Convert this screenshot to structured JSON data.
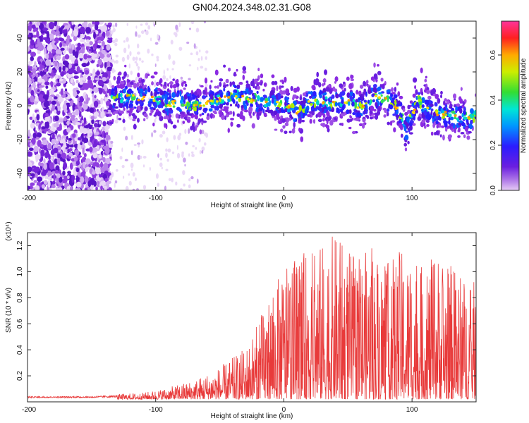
{
  "title": "GN04.2024.348.02.31.G08",
  "chart_data": [
    {
      "type": "heatmap",
      "xlabel": "Height of straight line (km)",
      "ylabel": "Frequency (Hz)",
      "xlim": [
        -200,
        150
      ],
      "ylim": [
        -50,
        50
      ],
      "xticks": [
        -200,
        -100,
        0,
        100
      ],
      "yticks": [
        -40,
        -20,
        0,
        20,
        40
      ],
      "colorbar": {
        "label": "Normalized spectral amplitude",
        "range": [
          0,
          0.75
        ],
        "ticks": [
          0.0,
          0.2,
          0.4,
          0.6
        ],
        "tick_labels": [
          "0.0",
          "0.2",
          "0.4",
          "0.6"
        ],
        "colors": [
          "#e6ccf5",
          "#8a2be2",
          "#3b1cff",
          "#0099ff",
          "#00e5d0",
          "#33dd33",
          "#ccee00",
          "#ffaa00",
          "#ff2020",
          "#ff3399"
        ]
      },
      "track": {
        "x": [
          -135,
          -120,
          -100,
          -90,
          -80,
          -70,
          -60,
          -50,
          -40,
          -30,
          -20,
          -10,
          0,
          10,
          20,
          30,
          40,
          50,
          60,
          70,
          80,
          90,
          95,
          100,
          105,
          110,
          120,
          130,
          140,
          150
        ],
        "y": [
          4,
          5,
          4,
          1,
          2,
          0,
          1,
          4,
          6,
          5,
          3,
          2,
          1,
          -4,
          2,
          3,
          1,
          2,
          -1,
          6,
          4,
          -2,
          -14,
          -6,
          4,
          -2,
          -4,
          -6,
          -7,
          -6
        ]
      }
    },
    {
      "type": "line",
      "xlabel": "Height of straight line (km)",
      "ylabel": "SNR (10 * v/v)",
      "y_multiplier_label": "(x10⁴)",
      "xlim": [
        -200,
        150
      ],
      "ylim": [
        0,
        1.3
      ],
      "xticks": [
        -200,
        -100,
        0,
        100
      ],
      "yticks": [
        0.2,
        0.4,
        0.6,
        0.8,
        1.0,
        1.2
      ],
      "ytick_labels": [
        "0.2",
        "0.4",
        "0.6",
        "0.8",
        "1.0",
        "1.2"
      ],
      "series": [
        {
          "color": "#e83a3a",
          "envelope_x": [
            -200,
            -150,
            -130,
            -110,
            -100,
            -90,
            -80,
            -70,
            -60,
            -50,
            -40,
            -30,
            -20,
            -10,
            0,
            10,
            20,
            30,
            40,
            50,
            60,
            70,
            80,
            90,
            100,
            110,
            120,
            130,
            140,
            150
          ],
          "envelope_y": [
            0.03,
            0.03,
            0.04,
            0.05,
            0.07,
            0.09,
            0.12,
            0.15,
            0.2,
            0.25,
            0.32,
            0.4,
            0.6,
            0.85,
            1.0,
            1.1,
            1.15,
            1.2,
            1.27,
            1.15,
            1.1,
            1.2,
            1.05,
            1.15,
            1.1,
            1.0,
            1.15,
            1.05,
            0.95,
            0.9
          ]
        }
      ]
    }
  ]
}
